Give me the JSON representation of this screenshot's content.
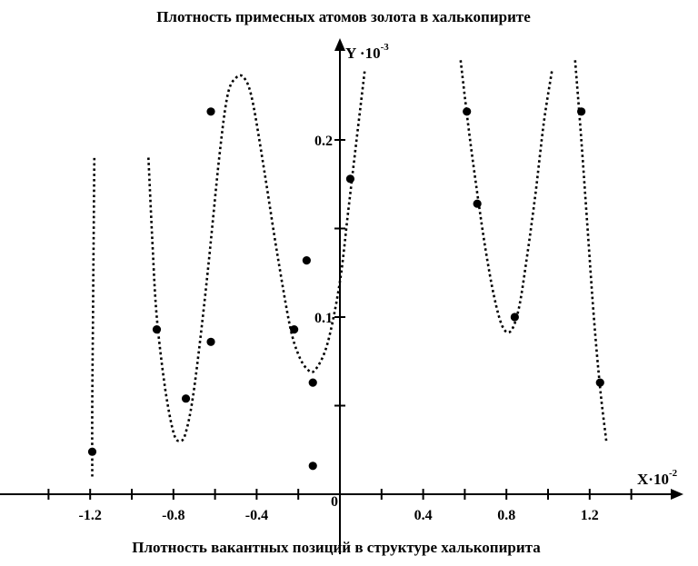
{
  "chart_data": {
    "type": "scatter",
    "title": "Плотность примесных атомов золота в халькопирите",
    "xlabel": "Плотность вакантных позиций в структуре халькопирита",
    "x_axis_name": "X",
    "x_axis_multiplier": "·10",
    "x_axis_exponent": "-2",
    "y_axis_name": "Y",
    "y_axis_multiplier": " ·10",
    "y_axis_exponent": "-3",
    "xlim": [
      -1.6,
      1.6
    ],
    "ylim": [
      0,
      0.25
    ],
    "x_ticks": [
      -1.4,
      -1.2,
      -1.0,
      -0.8,
      -0.6,
      -0.4,
      -0.2,
      0.2,
      0.4,
      0.6,
      0.8,
      1.0,
      1.2,
      1.4
    ],
    "x_tick_labels": [
      {
        "value": -1.2,
        "label": "-1.2"
      },
      {
        "value": -0.8,
        "label": "-0.8"
      },
      {
        "value": -0.4,
        "label": "-0.4"
      },
      {
        "value": 0,
        "label": "0"
      },
      {
        "value": 0.4,
        "label": "0.4"
      },
      {
        "value": 0.8,
        "label": "0.8"
      },
      {
        "value": 1.2,
        "label": "1.2"
      }
    ],
    "y_ticks": [
      0.05,
      0.1,
      0.15,
      0.2
    ],
    "y_tick_labels": [
      {
        "value": 0.1,
        "label": "0.1"
      },
      {
        "value": 0.2,
        "label": "0.2"
      }
    ],
    "grid": false,
    "points": [
      {
        "x": -1.19,
        "y": 0.024
      },
      {
        "x": -0.88,
        "y": 0.093
      },
      {
        "x": -0.74,
        "y": 0.054
      },
      {
        "x": -0.62,
        "y": 0.086
      },
      {
        "x": -0.62,
        "y": 0.216
      },
      {
        "x": -0.22,
        "y": 0.093
      },
      {
        "x": -0.16,
        "y": 0.132
      },
      {
        "x": -0.13,
        "y": 0.063
      },
      {
        "x": -0.13,
        "y": 0.016
      },
      {
        "x": 0.05,
        "y": 0.178
      },
      {
        "x": 0.61,
        "y": 0.216
      },
      {
        "x": 0.66,
        "y": 0.164
      },
      {
        "x": 0.84,
        "y": 0.1
      },
      {
        "x": 1.16,
        "y": 0.216
      },
      {
        "x": 1.25,
        "y": 0.063
      }
    ],
    "curves": [
      [
        [
          -1.19,
          0.01
        ],
        [
          -1.19,
          0.05
        ],
        [
          -1.185,
          0.12
        ],
        [
          -1.18,
          0.19
        ]
      ],
      [
        [
          -0.92,
          0.19
        ],
        [
          -0.9,
          0.14
        ],
        [
          -0.88,
          0.1
        ],
        [
          -0.84,
          0.06
        ],
        [
          -0.8,
          0.035
        ],
        [
          -0.77,
          0.03
        ],
        [
          -0.74,
          0.035
        ],
        [
          -0.7,
          0.06
        ],
        [
          -0.64,
          0.12
        ],
        [
          -0.58,
          0.19
        ],
        [
          -0.54,
          0.225
        ],
        [
          -0.5,
          0.235
        ],
        [
          -0.46,
          0.235
        ],
        [
          -0.42,
          0.222
        ],
        [
          -0.36,
          0.18
        ],
        [
          -0.3,
          0.135
        ],
        [
          -0.24,
          0.095
        ],
        [
          -0.2,
          0.079
        ],
        [
          -0.16,
          0.071
        ],
        [
          -0.12,
          0.07
        ],
        [
          -0.06,
          0.085
        ],
        [
          0.0,
          0.12
        ],
        [
          0.04,
          0.16
        ],
        [
          0.08,
          0.2
        ],
        [
          0.12,
          0.24
        ]
      ],
      [
        [
          0.58,
          0.245
        ],
        [
          0.62,
          0.205
        ],
        [
          0.66,
          0.17
        ],
        [
          0.7,
          0.138
        ],
        [
          0.74,
          0.112
        ],
        [
          0.78,
          0.095
        ],
        [
          0.82,
          0.092
        ],
        [
          0.86,
          0.105
        ],
        [
          0.9,
          0.135
        ],
        [
          0.94,
          0.17
        ],
        [
          0.98,
          0.21
        ],
        [
          1.02,
          0.24
        ]
      ],
      [
        [
          1.13,
          0.245
        ],
        [
          1.16,
          0.2
        ],
        [
          1.19,
          0.15
        ],
        [
          1.22,
          0.1
        ],
        [
          1.25,
          0.06
        ],
        [
          1.28,
          0.03
        ]
      ]
    ]
  }
}
